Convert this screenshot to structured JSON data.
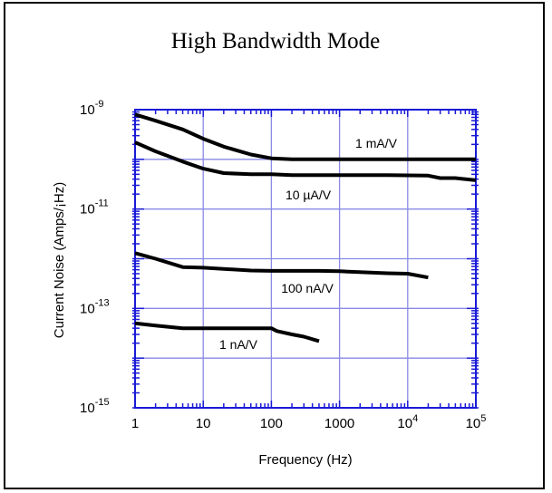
{
  "chart_data": {
    "type": "line",
    "title": "High Bandwidth Mode",
    "xlabel": "Frequency  (Hz)",
    "ylabel": "Current Noise  (Amps/¡Hz)",
    "x_scale": "log",
    "y_scale": "log",
    "xlim": [
      1,
      100000
    ],
    "ylim": [
      1e-15,
      1e-09
    ],
    "grid": true,
    "x_ticks": [
      {
        "base": "1",
        "exp": ""
      },
      {
        "base": "10",
        "exp": ""
      },
      {
        "base": "100",
        "exp": ""
      },
      {
        "base": "1000",
        "exp": ""
      },
      {
        "base": "10",
        "exp": "4"
      },
      {
        "base": "10",
        "exp": "5"
      }
    ],
    "y_ticks": [
      {
        "value": 1e-15,
        "base": "10",
        "exp": "-15"
      },
      {
        "value": 1e-13,
        "base": "10",
        "exp": "-13"
      },
      {
        "value": 1e-11,
        "base": "10",
        "exp": "-11"
      },
      {
        "value": 1e-09,
        "base": "10",
        "exp": "-9"
      }
    ],
    "colors": {
      "grid": "#8a8ae6",
      "axis": "#1a1ad6",
      "line": "#000000"
    },
    "series": [
      {
        "name": "1 mA/V",
        "x": [
          1,
          2,
          5,
          10,
          20,
          50,
          100,
          200,
          500,
          1000,
          10000,
          100000
        ],
        "y": [
          8e-10,
          6e-10,
          4e-10,
          2.6e-10,
          1.8e-10,
          1.25e-10,
          1.05e-10,
          1e-10,
          1e-10,
          1e-10,
          1e-10,
          1e-10
        ]
      },
      {
        "name": "10 µA/V",
        "x": [
          1,
          2,
          5,
          10,
          20,
          50,
          100,
          200,
          500,
          1000,
          5000,
          20000,
          30000,
          50000,
          100000
        ],
        "y": [
          2.2e-10,
          1.45e-10,
          9e-11,
          6.5e-11,
          5.3e-11,
          5e-11,
          5e-11,
          4.8e-11,
          4.8e-11,
          4.8e-11,
          4.8e-11,
          4.7e-11,
          4.2e-11,
          4.2e-11,
          3.8e-11
        ]
      },
      {
        "name": "100 nA/V",
        "x": [
          1,
          2,
          5,
          10,
          50,
          100,
          500,
          1000,
          5000,
          10000,
          20000
        ],
        "y": [
          1.3e-12,
          1e-12,
          6.8e-13,
          6.6e-13,
          5.8e-13,
          5.7e-13,
          5.7e-13,
          5.6e-13,
          5.1e-13,
          5e-13,
          4.2e-13
        ]
      },
      {
        "name": "1 nA/V",
        "x": [
          1,
          2,
          5,
          10,
          20,
          50,
          100,
          120,
          200,
          300,
          500
        ],
        "y": [
          5e-14,
          4.5e-14,
          4e-14,
          4e-14,
          4e-14,
          4e-14,
          4e-14,
          3.5e-14,
          3e-14,
          2.7e-14,
          2.2e-14
        ]
      }
    ],
    "annotations": [
      "1 mA/V",
      "10 µA/V",
      "100 nA/V",
      "1 nA/V"
    ]
  }
}
